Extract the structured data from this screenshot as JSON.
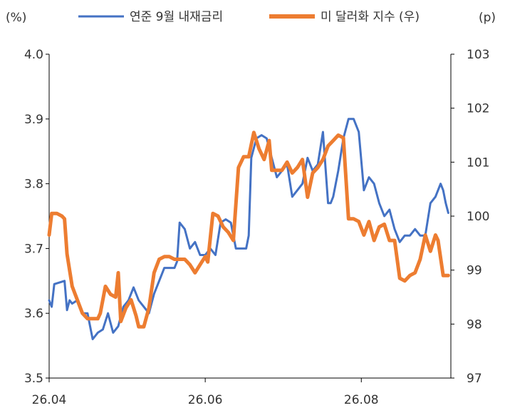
{
  "chart_data": {
    "type": "line",
    "left_unit": "(%)",
    "right_unit": "(p)",
    "legend": [
      {
        "name": "연준 9월 내재금리",
        "color": "#4472C4"
      },
      {
        "name": "미 달러화 지수 (우)",
        "color": "#ED7D31"
      }
    ],
    "y_left": {
      "min": 3.5,
      "max": 4.0,
      "ticks": [
        "3.5",
        "3.6",
        "3.7",
        "3.8",
        "3.9",
        "4.0"
      ]
    },
    "y_right": {
      "min": 97,
      "max": 103,
      "ticks": [
        "97",
        "98",
        "99",
        "100",
        "101",
        "102",
        "103"
      ]
    },
    "x_ticks": [
      {
        "label": "26.04",
        "t": 0
      },
      {
        "label": "26.06",
        "t": 61
      },
      {
        "label": "26.08",
        "t": 122
      }
    ],
    "t_max": 157,
    "series": [
      {
        "name": "연준 9월 내재금리",
        "axis": "left",
        "color": "#4472C4",
        "points": [
          [
            0,
            3.62
          ],
          [
            1,
            3.61
          ],
          [
            2,
            3.645
          ],
          [
            6,
            3.65
          ],
          [
            7,
            3.605
          ],
          [
            8,
            3.62
          ],
          [
            9,
            3.615
          ],
          [
            11,
            3.62
          ],
          [
            13,
            3.6
          ],
          [
            15,
            3.6
          ],
          [
            16,
            3.58
          ],
          [
            17,
            3.56
          ],
          [
            19,
            3.57
          ],
          [
            21,
            3.575
          ],
          [
            23,
            3.6
          ],
          [
            25,
            3.57
          ],
          [
            27,
            3.58
          ],
          [
            29,
            3.61
          ],
          [
            31,
            3.62
          ],
          [
            33,
            3.64
          ],
          [
            35,
            3.62
          ],
          [
            37,
            3.61
          ],
          [
            39,
            3.6
          ],
          [
            41,
            3.63
          ],
          [
            43,
            3.65
          ],
          [
            45,
            3.67
          ],
          [
            47,
            3.67
          ],
          [
            49,
            3.67
          ],
          [
            50,
            3.68
          ],
          [
            51,
            3.74
          ],
          [
            53,
            3.73
          ],
          [
            55,
            3.7
          ],
          [
            57,
            3.71
          ],
          [
            59,
            3.69
          ],
          [
            61,
            3.69
          ],
          [
            63,
            3.7
          ],
          [
            65,
            3.69
          ],
          [
            67,
            3.74
          ],
          [
            69,
            3.745
          ],
          [
            71,
            3.74
          ],
          [
            73,
            3.7
          ],
          [
            75,
            3.7
          ],
          [
            77,
            3.7
          ],
          [
            78,
            3.72
          ],
          [
            79,
            3.84
          ],
          [
            81,
            3.87
          ],
          [
            83,
            3.875
          ],
          [
            85,
            3.87
          ],
          [
            87,
            3.84
          ],
          [
            89,
            3.81
          ],
          [
            91,
            3.82
          ],
          [
            93,
            3.83
          ],
          [
            95,
            3.78
          ],
          [
            97,
            3.79
          ],
          [
            99,
            3.8
          ],
          [
            101,
            3.84
          ],
          [
            103,
            3.82
          ],
          [
            105,
            3.83
          ],
          [
            107,
            3.88
          ],
          [
            109,
            3.77
          ],
          [
            110,
            3.77
          ],
          [
            111,
            3.78
          ],
          [
            113,
            3.82
          ],
          [
            115,
            3.87
          ],
          [
            117,
            3.9
          ],
          [
            119,
            3.9
          ],
          [
            121,
            3.88
          ],
          [
            123,
            3.79
          ],
          [
            125,
            3.81
          ],
          [
            127,
            3.8
          ],
          [
            129,
            3.77
          ],
          [
            131,
            3.75
          ],
          [
            133,
            3.76
          ],
          [
            135,
            3.73
          ],
          [
            137,
            3.71
          ],
          [
            139,
            3.72
          ],
          [
            141,
            3.72
          ],
          [
            143,
            3.73
          ],
          [
            145,
            3.72
          ],
          [
            147,
            3.72
          ],
          [
            149,
            3.77
          ],
          [
            151,
            3.78
          ],
          [
            153,
            3.8
          ],
          [
            154,
            3.79
          ],
          [
            155,
            3.77
          ],
          [
            156,
            3.755
          ]
        ]
      },
      {
        "name": "미 달러화 지수 (우)",
        "axis": "right",
        "color": "#ED7D31",
        "points": [
          [
            0,
            99.65
          ],
          [
            1,
            100.05
          ],
          [
            3,
            100.05
          ],
          [
            5,
            100
          ],
          [
            6,
            99.95
          ],
          [
            7,
            99.3
          ],
          [
            9,
            98.7
          ],
          [
            11,
            98.45
          ],
          [
            13,
            98.2
          ],
          [
            15,
            98.1
          ],
          [
            17,
            98.1
          ],
          [
            19,
            98.1
          ],
          [
            20,
            98.2
          ],
          [
            22,
            98.7
          ],
          [
            24,
            98.55
          ],
          [
            26,
            98.5
          ],
          [
            27,
            98.95
          ],
          [
            28,
            98.05
          ],
          [
            30,
            98.3
          ],
          [
            32,
            98.45
          ],
          [
            34,
            98.15
          ],
          [
            35,
            97.95
          ],
          [
            37,
            97.95
          ],
          [
            39,
            98.3
          ],
          [
            41,
            98.95
          ],
          [
            43,
            99.2
          ],
          [
            45,
            99.25
          ],
          [
            47,
            99.25
          ],
          [
            49,
            99.2
          ],
          [
            51,
            99.2
          ],
          [
            53,
            99.2
          ],
          [
            55,
            99.1
          ],
          [
            57,
            98.95
          ],
          [
            59,
            99.1
          ],
          [
            61,
            99.25
          ],
          [
            62,
            99.15
          ],
          [
            64,
            100.05
          ],
          [
            66,
            100
          ],
          [
            68,
            99.8
          ],
          [
            70,
            99.7
          ],
          [
            72,
            99.55
          ],
          [
            74,
            100.9
          ],
          [
            76,
            101.1
          ],
          [
            78,
            101.1
          ],
          [
            80,
            101.55
          ],
          [
            82,
            101.25
          ],
          [
            84,
            101.05
          ],
          [
            86,
            101.4
          ],
          [
            87,
            100.85
          ],
          [
            89,
            100.85
          ],
          [
            91,
            100.85
          ],
          [
            93,
            101
          ],
          [
            95,
            100.8
          ],
          [
            97,
            100.9
          ],
          [
            99,
            101.05
          ],
          [
            101,
            100.35
          ],
          [
            103,
            100.8
          ],
          [
            105,
            100.9
          ],
          [
            107,
            101.05
          ],
          [
            109,
            101.3
          ],
          [
            111,
            101.4
          ],
          [
            113,
            101.5
          ],
          [
            115,
            101.45
          ],
          [
            117,
            99.95
          ],
          [
            119,
            99.95
          ],
          [
            121,
            99.9
          ],
          [
            123,
            99.65
          ],
          [
            125,
            99.9
          ],
          [
            127,
            99.55
          ],
          [
            129,
            99.8
          ],
          [
            131,
            99.85
          ],
          [
            133,
            99.55
          ],
          [
            135,
            99.55
          ],
          [
            137,
            98.85
          ],
          [
            139,
            98.8
          ],
          [
            141,
            98.9
          ],
          [
            143,
            98.95
          ],
          [
            145,
            99.2
          ],
          [
            147,
            99.65
          ],
          [
            149,
            99.35
          ],
          [
            151,
            99.65
          ],
          [
            152,
            99.55
          ],
          [
            154,
            98.9
          ],
          [
            156,
            98.9
          ]
        ]
      }
    ]
  }
}
